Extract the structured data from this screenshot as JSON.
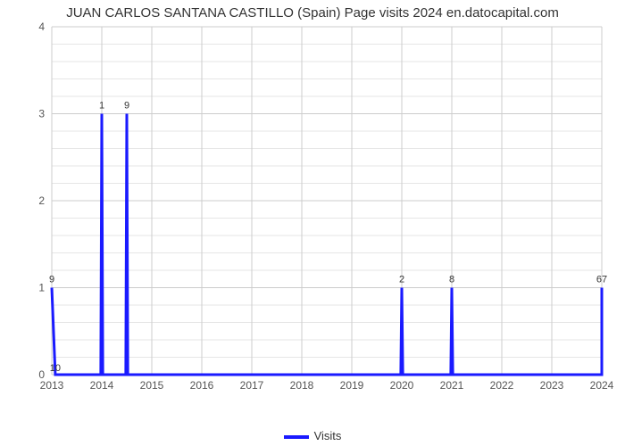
{
  "chart": {
    "type": "line",
    "title": "JUAN CARLOS SANTANA CASTILLO (Spain) Page visits 2024 en.datocapital.com",
    "title_fontsize": 15,
    "background_color": "#ffffff",
    "grid_major_color": "#cccccc",
    "grid_minor_color": "#e6e6e6",
    "line_color": "#1a1aff",
    "line_width": 3,
    "x": {
      "ticks": [
        "2013",
        "2014",
        "2015",
        "2016",
        "2017",
        "2018",
        "2019",
        "2020",
        "2021",
        "2022",
        "2023",
        "2024"
      ],
      "label_fontsize": 12
    },
    "y": {
      "min": 0,
      "max": 4,
      "major_step": 1,
      "minor_per_major": 5,
      "ticks": [
        "0",
        "1",
        "2",
        "3",
        "4"
      ],
      "label_fontsize": 12
    },
    "points": [
      {
        "xi": 0.0,
        "y": 1,
        "label": "9"
      },
      {
        "xi": 0.07,
        "y": 0,
        "label": "10"
      },
      {
        "xi": 0.55,
        "y": 0,
        "label": ""
      },
      {
        "xi": 0.98,
        "y": 0,
        "label": ""
      },
      {
        "xi": 1.0,
        "y": 3,
        "label": "1"
      },
      {
        "xi": 1.02,
        "y": 0,
        "label": ""
      },
      {
        "xi": 1.48,
        "y": 0,
        "label": ""
      },
      {
        "xi": 1.5,
        "y": 3,
        "label": "9"
      },
      {
        "xi": 1.52,
        "y": 0,
        "label": ""
      },
      {
        "xi": 6.98,
        "y": 0,
        "label": ""
      },
      {
        "xi": 7.0,
        "y": 1,
        "label": "2"
      },
      {
        "xi": 7.02,
        "y": 0,
        "label": ""
      },
      {
        "xi": 7.98,
        "y": 0,
        "label": ""
      },
      {
        "xi": 8.0,
        "y": 1,
        "label": "8"
      },
      {
        "xi": 8.02,
        "y": 0,
        "label": ""
      },
      {
        "xi": 11.0,
        "y": 0,
        "label": ""
      },
      {
        "xi": 11.0,
        "y": 1,
        "label": "67"
      }
    ],
    "legend": {
      "label": "Visits",
      "swatch_color": "#1a1aff"
    }
  }
}
